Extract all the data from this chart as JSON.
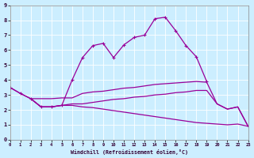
{
  "background_color": "#cceeff",
  "grid_color": "#ffffff",
  "line_color": "#990099",
  "xlabel": "Windchill (Refroidissement éolien,°C)",
  "xlim": [
    0,
    23
  ],
  "ylim": [
    0,
    9
  ],
  "curves": [
    {
      "x": [
        0,
        1,
        2,
        3,
        4,
        5,
        6,
        7,
        8,
        9,
        10,
        11,
        12,
        13,
        14,
        15,
        16,
        17,
        18,
        19,
        20,
        21,
        22,
        23
      ],
      "y": [
        3.5,
        3.1,
        2.75,
        2.2,
        2.2,
        2.3,
        4.0,
        5.5,
        6.3,
        6.45,
        5.5,
        6.35,
        6.85,
        7.0,
        8.1,
        8.2,
        7.3,
        6.3,
        5.55,
        3.9,
        null,
        null,
        null,
        null
      ],
      "has_markers": true
    },
    {
      "x": [
        0,
        1,
        2,
        3,
        4,
        5,
        6,
        7,
        8,
        9,
        10,
        11,
        12,
        13,
        14,
        15,
        16,
        17,
        18,
        19,
        20,
        21,
        22,
        23
      ],
      "y": [
        3.5,
        3.1,
        2.75,
        2.75,
        2.75,
        2.8,
        2.8,
        3.1,
        3.2,
        3.25,
        3.35,
        3.45,
        3.5,
        3.6,
        3.7,
        3.75,
        3.8,
        3.85,
        3.9,
        3.85,
        2.4,
        2.05,
        2.2,
        0.9
      ],
      "has_markers": false
    },
    {
      "x": [
        2,
        3,
        4,
        5,
        6,
        7,
        8,
        9,
        10,
        11,
        12,
        13,
        14,
        15,
        16,
        17,
        18,
        19,
        20,
        21,
        22,
        23
      ],
      "y": [
        2.75,
        2.2,
        2.2,
        2.3,
        2.4,
        2.4,
        2.5,
        2.6,
        2.7,
        2.75,
        2.85,
        2.9,
        3.0,
        3.05,
        3.15,
        3.2,
        3.3,
        3.3,
        2.4,
        2.05,
        2.2,
        0.9
      ],
      "has_markers": false
    },
    {
      "x": [
        2,
        3,
        4,
        5,
        6,
        7,
        8,
        9,
        10,
        11,
        12,
        13,
        14,
        15,
        16,
        17,
        18,
        19,
        20,
        21,
        22,
        23
      ],
      "y": [
        2.75,
        2.2,
        2.2,
        2.3,
        2.3,
        2.2,
        2.15,
        2.05,
        1.95,
        1.85,
        1.75,
        1.65,
        1.55,
        1.45,
        1.35,
        1.25,
        1.15,
        1.1,
        1.05,
        1.0,
        1.05,
        0.9
      ],
      "has_markers": false
    }
  ]
}
